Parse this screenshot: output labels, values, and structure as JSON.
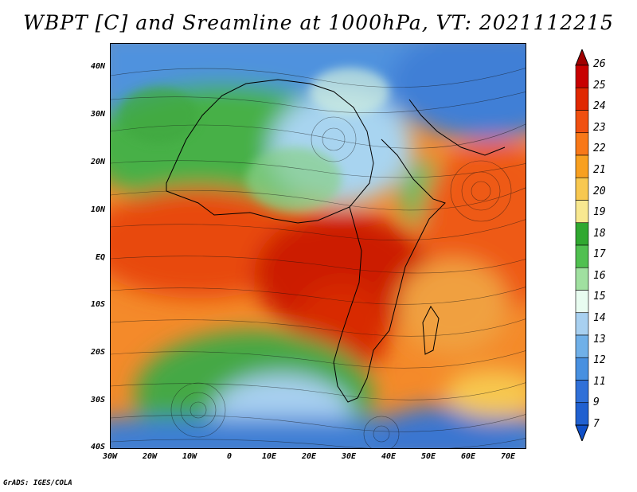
{
  "title": "WBPT [C] and Sreamline at 1000hPa, VT: 2021112215",
  "credit": "GrADS: IGES/COLA",
  "axes": {
    "lat_labels": [
      "40N",
      "30N",
      "20N",
      "10N",
      "EQ",
      "10S",
      "20S",
      "30S",
      "40S"
    ],
    "lon_labels": [
      "30W",
      "20W",
      "10W",
      "0",
      "10E",
      "20E",
      "30E",
      "40E",
      "50E",
      "60E",
      "70E"
    ]
  },
  "colorbar": {
    "labels": [
      "26",
      "25",
      "24",
      "23",
      "22",
      "21",
      "20",
      "19",
      "18",
      "17",
      "16",
      "15",
      "14",
      "13",
      "12",
      "11",
      "9",
      "7"
    ],
    "colors": [
      "#a00000",
      "#c80000",
      "#e02800",
      "#f05010",
      "#f87818",
      "#f8a020",
      "#f8c850",
      "#f8e890",
      "#30a830",
      "#50c050",
      "#a0e0a0",
      "#e8fcf0",
      "#a8d0f0",
      "#70b0e8",
      "#4890e0",
      "#3070d8",
      "#2060d0",
      "#1050c8"
    ]
  }
}
